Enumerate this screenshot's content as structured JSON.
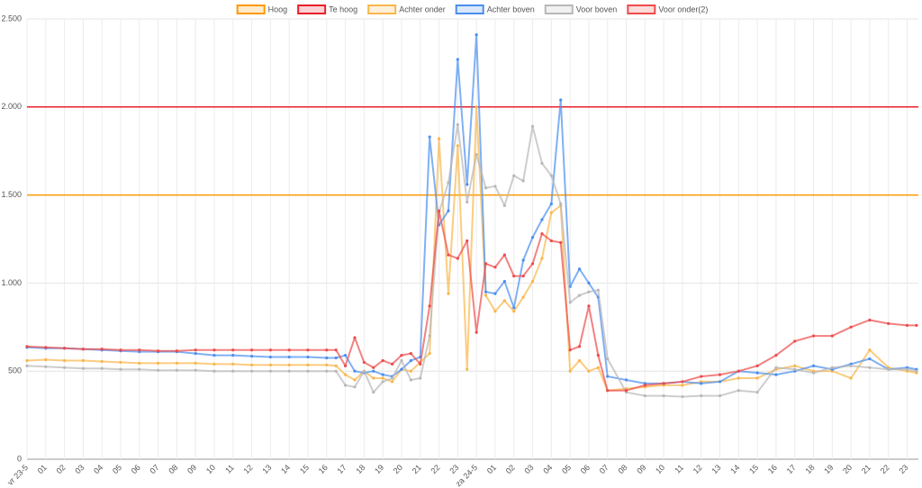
{
  "chart_data": {
    "type": "line",
    "legend": "top",
    "grid": true,
    "xlim": [
      0,
      47.6
    ],
    "ylim": [
      0,
      2500
    ],
    "yticks": [
      0,
      500,
      {
        "value": 1000,
        "label": "1.000"
      },
      {
        "value": 1500,
        "label": "1.500"
      },
      {
        "value": 2000,
        "label": "2.000"
      },
      {
        "value": 2500,
        "label": "2.500"
      }
    ],
    "xticks": [
      {
        "value": 0,
        "label": "vr 23-5"
      },
      {
        "value": 1,
        "label": "01"
      },
      {
        "value": 2,
        "label": "02"
      },
      {
        "value": 3,
        "label": "03"
      },
      {
        "value": 4,
        "label": "04"
      },
      {
        "value": 5,
        "label": "05"
      },
      {
        "value": 6,
        "label": "06"
      },
      {
        "value": 7,
        "label": "07"
      },
      {
        "value": 8,
        "label": "08"
      },
      {
        "value": 9,
        "label": "09"
      },
      10,
      11,
      12,
      13,
      14,
      15,
      16,
      17,
      18,
      19,
      20,
      21,
      22,
      23,
      {
        "value": 24,
        "label": "za 24-5"
      },
      {
        "value": 25,
        "label": "01"
      },
      {
        "value": 26,
        "label": "02"
      },
      {
        "value": 27,
        "label": "03"
      },
      {
        "value": 28,
        "label": "04"
      },
      {
        "value": 29,
        "label": "05"
      },
      {
        "value": 30,
        "label": "06"
      },
      {
        "value": 31,
        "label": "07"
      },
      {
        "value": 32,
        "label": "08"
      },
      {
        "value": 33,
        "label": "09"
      },
      {
        "value": 34,
        "label": "10"
      },
      {
        "value": 35,
        "label": "11"
      },
      {
        "value": 36,
        "label": "12"
      },
      {
        "value": 37,
        "label": "13"
      },
      {
        "value": 38,
        "label": "14"
      },
      {
        "value": 39,
        "label": "15"
      },
      {
        "value": 40,
        "label": "16"
      },
      {
        "value": 41,
        "label": "17"
      },
      {
        "value": 42,
        "label": "18"
      },
      {
        "value": 43,
        "label": "19"
      },
      {
        "value": 44,
        "label": "20"
      },
      {
        "value": 45,
        "label": "21"
      },
      {
        "value": 46,
        "label": "22"
      },
      {
        "value": 47,
        "label": "23"
      }
    ],
    "x": [
      0,
      1,
      2,
      3,
      4,
      5,
      6,
      7,
      8,
      9,
      10,
      11,
      12,
      13,
      14,
      15,
      16,
      16.5,
      17,
      17.5,
      18,
      18.5,
      19,
      19.5,
      20,
      20.5,
      21,
      21.5,
      22,
      22.5,
      23,
      23.5,
      24,
      24.5,
      25,
      25.5,
      26,
      26.5,
      27,
      27.5,
      28,
      28.5,
      29,
      29.5,
      30,
      30.5,
      31,
      32,
      33,
      34,
      35,
      36,
      37,
      38,
      39,
      40,
      41,
      42,
      43,
      44,
      45,
      46,
      47,
      47.5
    ],
    "series": [
      {
        "name": "Hoog",
        "color": "#ff9900",
        "threshold": true,
        "x": [
          0,
          47.6
        ],
        "values": [
          1500,
          1500
        ]
      },
      {
        "name": "Te hoog",
        "color": "#e8202a",
        "threshold": true,
        "x": [
          0,
          47.6
        ],
        "values": [
          2000,
          2000
        ]
      },
      {
        "name": "Achter onder",
        "color": "#f9b64a",
        "values": [
          560,
          565,
          560,
          560,
          555,
          550,
          545,
          545,
          545,
          545,
          540,
          540,
          535,
          535,
          535,
          535,
          535,
          530,
          480,
          450,
          500,
          460,
          460,
          440,
          510,
          500,
          550,
          600,
          1820,
          940,
          1780,
          510,
          2000,
          930,
          840,
          900,
          840,
          920,
          1010,
          1140,
          1400,
          1440,
          500,
          560,
          500,
          520,
          390,
          400,
          410,
          420,
          420,
          440,
          440,
          460,
          460,
          510,
          530,
          500,
          500,
          460,
          620,
          520,
          500,
          490
        ]
      },
      {
        "name": "Achter boven",
        "color": "#4a8ef0",
        "values": [
          635,
          630,
          630,
          625,
          620,
          615,
          610,
          610,
          610,
          600,
          590,
          590,
          585,
          580,
          580,
          580,
          575,
          575,
          590,
          500,
          490,
          500,
          480,
          470,
          510,
          560,
          580,
          1830,
          1330,
          1410,
          2270,
          1560,
          2410,
          950,
          940,
          1010,
          860,
          1130,
          1260,
          1360,
          1450,
          2040,
          980,
          1080,
          1000,
          920,
          470,
          450,
          430,
          430,
          440,
          430,
          440,
          500,
          490,
          480,
          500,
          530,
          510,
          540,
          570,
          510,
          520,
          510
        ]
      },
      {
        "name": "Voor boven",
        "color": "#b8b8b8",
        "values": [
          530,
          525,
          520,
          515,
          515,
          510,
          510,
          505,
          505,
          505,
          500,
          500,
          500,
          500,
          500,
          500,
          500,
          500,
          420,
          410,
          500,
          380,
          440,
          460,
          560,
          450,
          460,
          700,
          1400,
          1570,
          1900,
          1460,
          1730,
          1540,
          1550,
          1440,
          1610,
          1580,
          1890,
          1680,
          1610,
          1450,
          890,
          930,
          950,
          960,
          570,
          380,
          360,
          360,
          355,
          360,
          360,
          390,
          380,
          520,
          510,
          490,
          520,
          530,
          520,
          510,
          510,
          500
        ]
      },
      {
        "name": "Voor onder(2)",
        "color": "#ee4b4b",
        "values": [
          640,
          635,
          630,
          625,
          625,
          620,
          620,
          615,
          615,
          620,
          620,
          620,
          620,
          620,
          620,
          620,
          620,
          620,
          530,
          690,
          550,
          520,
          560,
          540,
          590,
          600,
          540,
          870,
          1410,
          1160,
          1140,
          1240,
          720,
          1110,
          1090,
          1160,
          1040,
          1040,
          1110,
          1280,
          1240,
          1230,
          620,
          640,
          870,
          590,
          390,
          390,
          420,
          430,
          440,
          470,
          480,
          500,
          530,
          590,
          670,
          700,
          700,
          750,
          790,
          770,
          760,
          760
        ]
      }
    ]
  }
}
